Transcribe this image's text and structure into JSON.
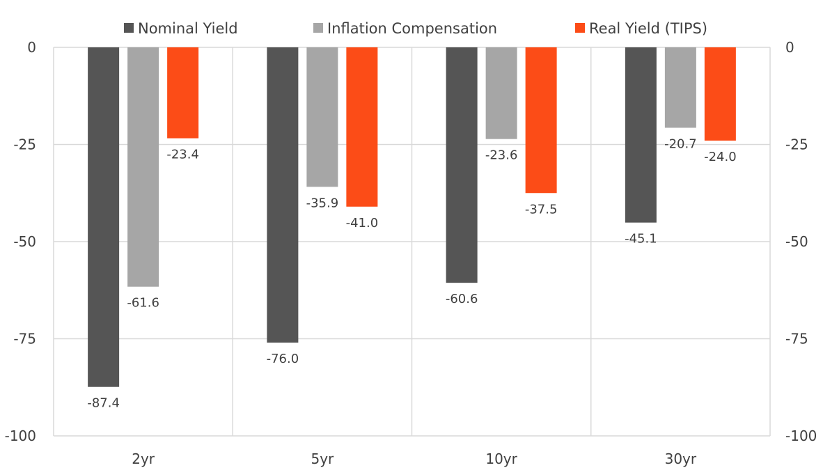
{
  "chart_data": {
    "type": "bar",
    "title": "",
    "xlabel": "",
    "ylabel": "",
    "categories": [
      "2yr",
      "5yr",
      "10yr",
      "30yr"
    ],
    "series": [
      {
        "name": "Nominal Yield",
        "color": "#555555",
        "values": [
          -87.4,
          -76.0,
          -60.6,
          -45.1
        ]
      },
      {
        "name": "Inflation Compensation",
        "color": "#a6a6a6",
        "values": [
          -61.6,
          -35.9,
          -23.6,
          -20.7
        ]
      },
      {
        "name": "Real Yield (TIPS)",
        "color": "#fc4c17",
        "values": [
          -23.4,
          -41.0,
          -37.5,
          -24.0
        ]
      }
    ],
    "ylim": [
      -100,
      0
    ],
    "yticks": [
      0,
      -25,
      -50,
      -75,
      -100
    ],
    "secondary_y_axis": true,
    "data_labels": true,
    "gridlines": true,
    "legend_position": "top"
  }
}
